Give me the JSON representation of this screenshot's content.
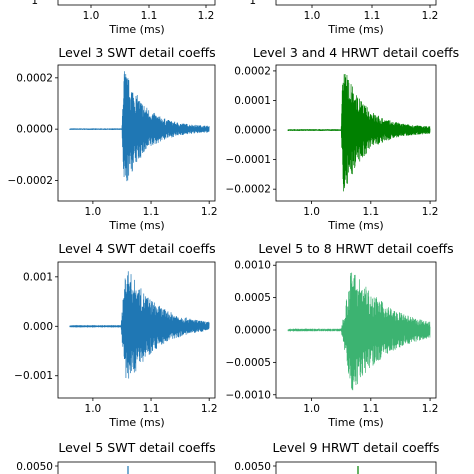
{
  "chart_data": [
    {
      "type": "line",
      "title": "",
      "xlabel": "Time (ms)",
      "ylabel": "",
      "x_ticks": [
        "1.0",
        "1.1",
        "1.2"
      ],
      "y_ticks": [
        "1"
      ],
      "color": "#1f77b4",
      "partial": "bottom-only"
    },
    {
      "type": "line",
      "title": "",
      "xlabel": "Time (ms)",
      "ylabel": "",
      "x_ticks": [
        "1.0",
        "1.1",
        "1.2"
      ],
      "y_ticks": [
        "1"
      ],
      "color": "#008000",
      "partial": "bottom-only"
    },
    {
      "type": "line",
      "title": "Level 3 SWT detail coeffs",
      "xlabel": "Time (ms)",
      "ylabel": "",
      "x_ticks": [
        "1.0",
        "1.1",
        "1.2"
      ],
      "y_ticks": [
        "0.0002",
        "0.0000",
        "−0.0002"
      ],
      "xlim": [
        0.94,
        1.21
      ],
      "ylim": [
        -0.00028,
        0.00025
      ],
      "y_tick_values": [
        0.0002,
        0,
        -0.0002
      ],
      "x_tick_values": [
        1.0,
        1.1,
        1.2
      ],
      "color": "#1f77b4",
      "signal": {
        "onset": 1.05,
        "peak_time": 1.053,
        "peak": 0.00024,
        "decay": 0.035,
        "floor": 1e-05
      }
    },
    {
      "type": "line",
      "title": "Level 3 and 4 HRWT detail coeffs",
      "xlabel": "Time (ms)",
      "ylabel": "",
      "x_ticks": [
        "1.0",
        "1.1",
        "1.2"
      ],
      "y_ticks": [
        "0.0002",
        "0.0001",
        "0.0000",
        "−0.0001",
        "−0.0002"
      ],
      "xlim": [
        0.94,
        1.21
      ],
      "ylim": [
        -0.00024,
        0.00022
      ],
      "y_tick_values": [
        0.0002,
        0.0001,
        0,
        -0.0001,
        -0.0002
      ],
      "x_tick_values": [
        1.0,
        1.1,
        1.2
      ],
      "color": "#008000",
      "signal": {
        "onset": 1.05,
        "peak_time": 1.053,
        "peak": 0.00022,
        "decay": 0.035,
        "floor": 1e-05
      }
    },
    {
      "type": "line",
      "title": "Level 4 SWT detail coeffs",
      "xlabel": "Time (ms)",
      "ylabel": "",
      "x_ticks": [
        "1.0",
        "1.1",
        "1.2"
      ],
      "y_ticks": [
        "0.001",
        "0.000",
        "−0.001"
      ],
      "xlim": [
        0.94,
        1.21
      ],
      "ylim": [
        -0.00145,
        0.0013
      ],
      "y_tick_values": [
        0.001,
        0,
        -0.001
      ],
      "x_tick_values": [
        1.0,
        1.1,
        1.2
      ],
      "color": "#1f77b4",
      "signal": {
        "onset": 1.048,
        "peak_time": 1.057,
        "peak": 0.00125,
        "decay": 0.05,
        "floor": 2e-05
      }
    },
    {
      "type": "line",
      "title": "Level 5 to 8 HRWT detail coeffs",
      "xlabel": "Time (ms)",
      "ylabel": "",
      "x_ticks": [
        "1.0",
        "1.1",
        "1.2"
      ],
      "y_ticks": [
        "0.0010",
        "0.0005",
        "0.0000",
        "−0.0005",
        "−0.0010"
      ],
      "xlim": [
        0.94,
        1.21
      ],
      "ylim": [
        -0.00105,
        0.00105
      ],
      "y_tick_values": [
        0.001,
        0.0005,
        0,
        -0.0005,
        -0.001
      ],
      "x_tick_values": [
        1.0,
        1.1,
        1.2
      ],
      "color": "#3cb371",
      "signal": {
        "onset": 1.05,
        "peak_time": 1.068,
        "peak": 0.00098,
        "decay": 0.06,
        "floor": 2e-05
      }
    },
    {
      "type": "line",
      "title": "Level 5 SWT detail coeffs",
      "xlabel": "",
      "ylabel": "",
      "x_ticks": [],
      "y_ticks": [
        "0.0050"
      ],
      "color": "#1f77b4",
      "partial": "top-only"
    },
    {
      "type": "line",
      "title": "Level 9 HRWT detail coeffs",
      "xlabel": "",
      "ylabel": "",
      "x_ticks": [],
      "y_ticks": [
        "0.0050"
      ],
      "color": "#008000",
      "partial": "top-only"
    }
  ]
}
